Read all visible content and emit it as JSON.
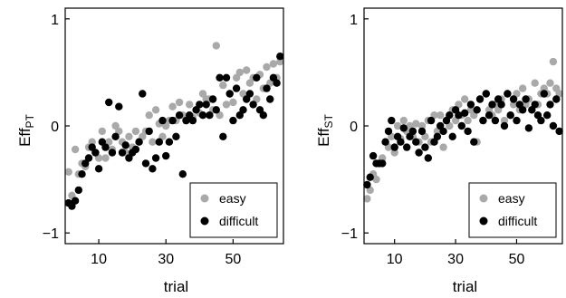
{
  "colors": {
    "easy": "#a9a9a9",
    "difficult": "#000000"
  },
  "chart_data": [
    {
      "type": "scatter",
      "title": "",
      "xlabel": "trial",
      "ylabel": "Eff",
      "ylabel_sub": "PT",
      "xlim": [
        0,
        65
      ],
      "ylim": [
        -1.1,
        1.1
      ],
      "xticks": [
        10,
        30,
        50
      ],
      "yticks": [
        -1,
        0,
        1
      ],
      "ytick_labels": [
        "−1",
        "0",
        "1"
      ],
      "grid": false,
      "legend_position": "bottom-right",
      "series": [
        {
          "name": "easy",
          "x": [
            1,
            2,
            3,
            4,
            5,
            6,
            7,
            8,
            9,
            10,
            11,
            12,
            13,
            14,
            15,
            16,
            17,
            18,
            19,
            20,
            21,
            22,
            23,
            24,
            25,
            26,
            27,
            28,
            29,
            30,
            31,
            32,
            33,
            34,
            35,
            36,
            37,
            38,
            39,
            40,
            41,
            42,
            43,
            44,
            45,
            46,
            47,
            48,
            49,
            50,
            51,
            52,
            53,
            54,
            55,
            56,
            57,
            58,
            59,
            60,
            61,
            62,
            63,
            64
          ],
          "y": [
            -0.43,
            -0.65,
            -0.22,
            -0.45,
            -0.35,
            -0.38,
            -0.2,
            -0.15,
            -0.25,
            -0.3,
            -0.05,
            -0.3,
            -0.15,
            -0.22,
            0.0,
            -0.05,
            -0.15,
            -0.25,
            -0.1,
            -0.2,
            -0.05,
            -0.15,
            -0.1,
            -0.05,
            0.1,
            -0.15,
            0.15,
            0.02,
            -0.1,
            0.0,
            0.05,
            0.18,
            0.05,
            0.22,
            0.1,
            0.05,
            0.2,
            0.08,
            0.15,
            0.12,
            0.3,
            0.25,
            0.25,
            0.15,
            0.75,
            0.1,
            0.38,
            0.2,
            0.3,
            0.22,
            0.45,
            0.5,
            0.3,
            0.52,
            0.4,
            0.45,
            0.25,
            0.48,
            0.35,
            0.55,
            0.4,
            0.58,
            0.45,
            0.6
          ]
        },
        {
          "name": "difficult",
          "x": [
            1,
            2,
            3,
            4,
            5,
            6,
            7,
            8,
            9,
            10,
            11,
            12,
            13,
            14,
            15,
            16,
            17,
            18,
            19,
            20,
            21,
            22,
            23,
            24,
            25,
            26,
            27,
            28,
            29,
            30,
            31,
            32,
            33,
            34,
            35,
            36,
            37,
            38,
            39,
            40,
            41,
            42,
            43,
            44,
            45,
            46,
            47,
            48,
            49,
            50,
            51,
            52,
            53,
            54,
            55,
            56,
            57,
            58,
            59,
            60,
            61,
            62,
            63,
            64
          ],
          "y": [
            -0.72,
            -0.75,
            -0.7,
            -0.6,
            -0.45,
            -0.35,
            -0.3,
            -0.2,
            -0.25,
            -0.4,
            -0.15,
            -0.2,
            0.22,
            -0.25,
            -0.1,
            0.18,
            -0.25,
            -0.18,
            -0.3,
            -0.25,
            -0.22,
            -0.15,
            0.3,
            -0.35,
            -0.05,
            -0.4,
            -0.3,
            -0.15,
            0.05,
            -0.28,
            -0.15,
            0.05,
            -0.1,
            0.1,
            -0.45,
            0.05,
            0.1,
            0.05,
            0.15,
            0.2,
            0.1,
            0.2,
            0.1,
            0.25,
            0.15,
            0.45,
            -0.1,
            0.45,
            0.3,
            0.05,
            0.35,
            0.1,
            0.15,
            0.25,
            0.3,
            0.2,
            0.45,
            0.15,
            0.1,
            0.35,
            0.25,
            0.45,
            0.4,
            0.65
          ]
        }
      ]
    },
    {
      "type": "scatter",
      "title": "",
      "xlabel": "trial",
      "ylabel": "Eff",
      "ylabel_sub": "ST",
      "xlim": [
        0,
        65
      ],
      "ylim": [
        -1.1,
        1.1
      ],
      "xticks": [
        10,
        30,
        50
      ],
      "yticks": [
        -1,
        0,
        1
      ],
      "ytick_labels": [
        "−1",
        "0",
        "1"
      ],
      "grid": false,
      "legend_position": "bottom-right",
      "series": [
        {
          "name": "easy",
          "x": [
            1,
            2,
            3,
            4,
            5,
            6,
            7,
            8,
            9,
            10,
            11,
            12,
            13,
            14,
            15,
            16,
            17,
            18,
            19,
            20,
            21,
            22,
            23,
            24,
            25,
            26,
            27,
            28,
            29,
            30,
            31,
            32,
            33,
            34,
            35,
            36,
            37,
            38,
            39,
            40,
            41,
            42,
            43,
            44,
            45,
            46,
            47,
            48,
            49,
            50,
            51,
            52,
            53,
            54,
            55,
            56,
            57,
            58,
            59,
            60,
            61,
            62,
            63,
            64
          ],
          "y": [
            -0.68,
            -0.6,
            -0.45,
            -0.5,
            -0.35,
            -0.3,
            -0.15,
            -0.2,
            -0.1,
            -0.25,
            0.0,
            -0.12,
            0.05,
            -0.05,
            0.0,
            -0.1,
            0.02,
            -0.15,
            0.0,
            -0.1,
            0.05,
            -0.15,
            0.1,
            -0.05,
            0.1,
            -0.2,
            0.05,
            0.0,
            0.15,
            0.05,
            0.2,
            0.1,
            0.25,
            0.05,
            0.15,
            0.1,
            -0.15,
            0.25,
            0.05,
            0.3,
            0.15,
            0.1,
            0.2,
            0.15,
            0.25,
            0.05,
            0.3,
            0.1,
            0.2,
            0.3,
            0.15,
            0.35,
            0.2,
            0.25,
            0.15,
            0.4,
            0.2,
            0.3,
            0.35,
            0.3,
            0.4,
            0.6,
            0.35,
            0.3
          ]
        },
        {
          "name": "difficult",
          "x": [
            1,
            2,
            3,
            4,
            5,
            6,
            7,
            8,
            9,
            10,
            11,
            12,
            13,
            14,
            15,
            16,
            17,
            18,
            19,
            20,
            21,
            22,
            23,
            24,
            25,
            26,
            27,
            28,
            29,
            30,
            31,
            32,
            33,
            34,
            35,
            36,
            37,
            38,
            39,
            40,
            41,
            42,
            43,
            44,
            45,
            46,
            47,
            48,
            49,
            50,
            51,
            52,
            53,
            54,
            55,
            56,
            57,
            58,
            59,
            60,
            61,
            62,
            63,
            64
          ],
          "y": [
            -0.55,
            -0.48,
            -0.28,
            -0.35,
            -0.35,
            -0.35,
            -0.15,
            -0.05,
            0.05,
            -0.2,
            -0.1,
            -0.15,
            -0.02,
            -0.2,
            -0.1,
            -0.05,
            -0.15,
            -0.25,
            -0.05,
            -0.2,
            -0.3,
            0.05,
            -0.15,
            -0.1,
            0.0,
            -0.05,
            0.05,
            0.1,
            -0.1,
            0.15,
            0.1,
            0.0,
            0.12,
            -0.05,
            0.2,
            -0.15,
            0.15,
            0.25,
            0.05,
            0.3,
            0.1,
            0.2,
            0.05,
            0.25,
            0.2,
            0.0,
            0.3,
            0.1,
            0.25,
            0.05,
            0.2,
            0.15,
            0.25,
            -0.02,
            0.15,
            0.2,
            0.1,
            0.05,
            0.3,
            0.1,
            0.2,
            0.0,
            0.25,
            -0.05
          ]
        }
      ]
    }
  ]
}
